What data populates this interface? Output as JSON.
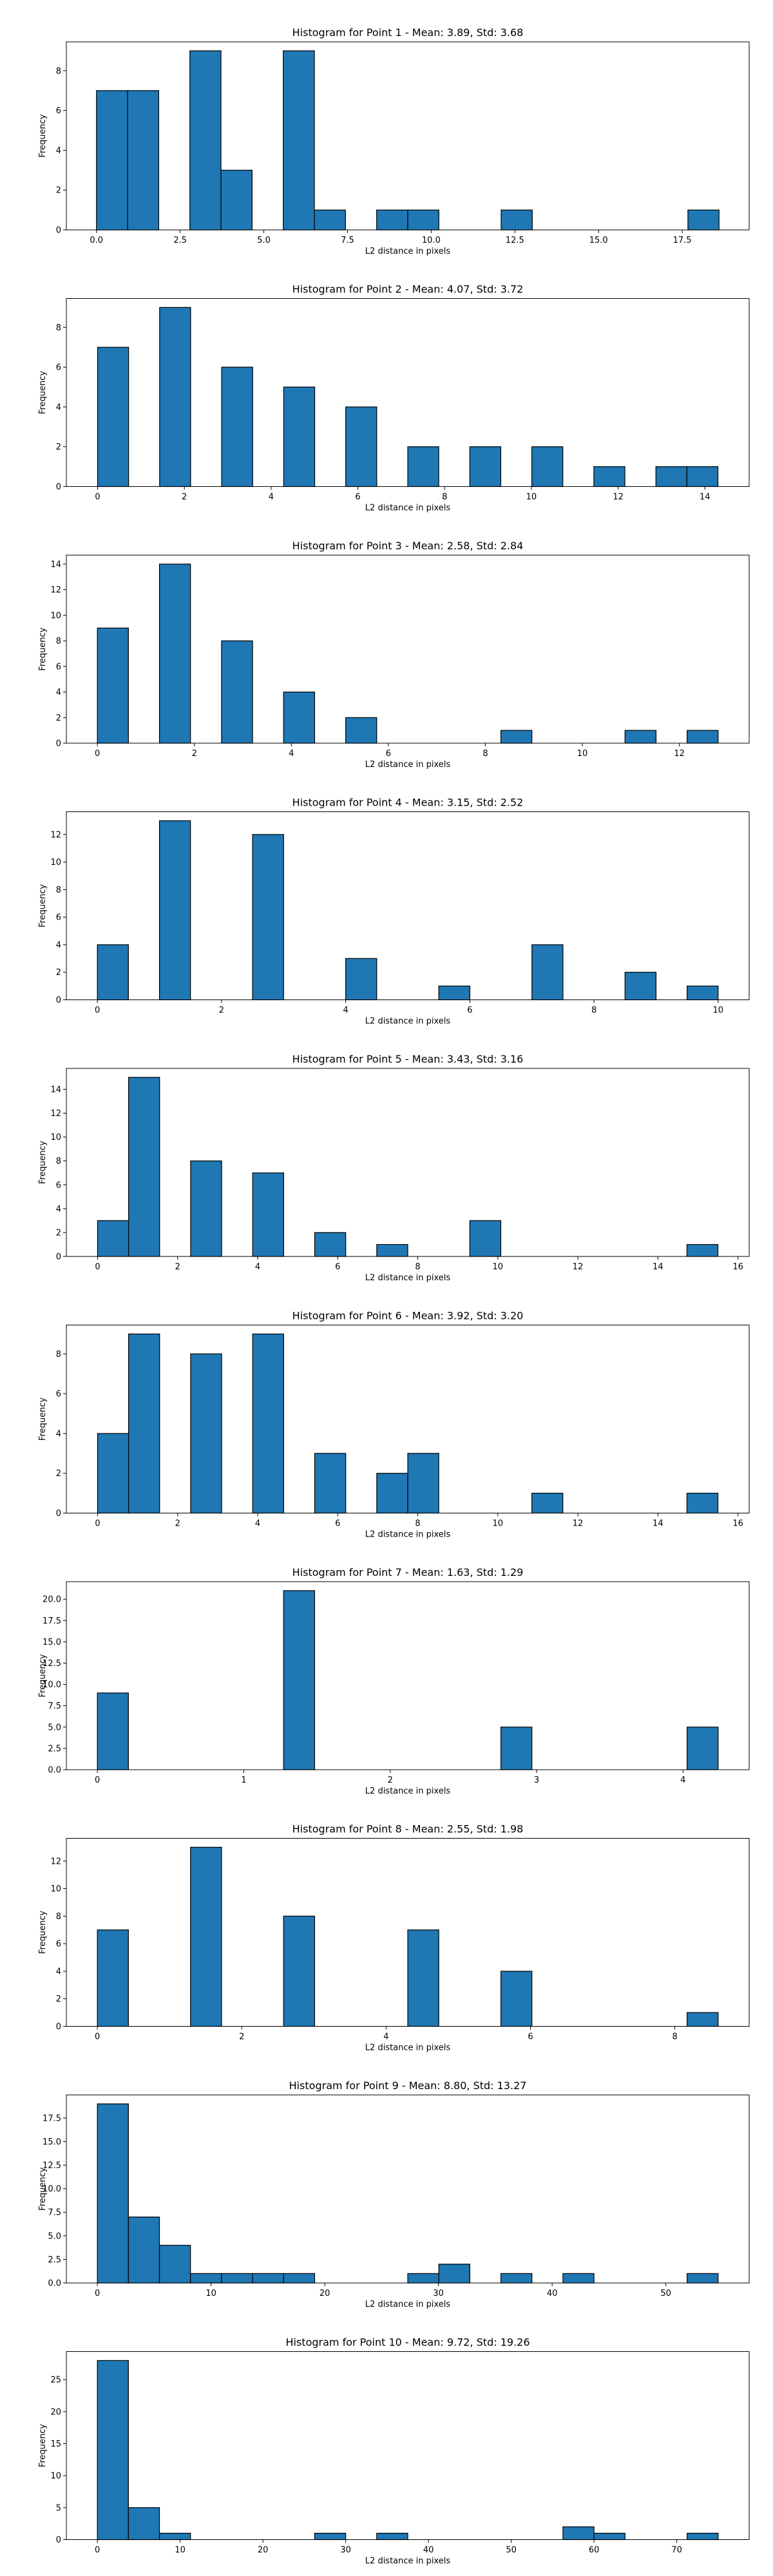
{
  "figure": {
    "bar_color": "#1f77b4",
    "edge_color": "#000000",
    "background": "#ffffff"
  },
  "chart_data": [
    {
      "type": "bar",
      "title": "Histogram for Point 1 - Mean: 3.89, Std: 3.68",
      "xlabel": "L2 distance in pixels",
      "ylabel": "Frequency",
      "bin_start": 0,
      "bin_width": 0.93,
      "counts": [
        7,
        7,
        0,
        9,
        3,
        0,
        9,
        1,
        0,
        1,
        1,
        0,
        0,
        1,
        0,
        0,
        0,
        0,
        0,
        1
      ],
      "xlim": [
        -0.9,
        19.5
      ],
      "ylim": [
        0,
        9.45
      ],
      "xticks": [
        0,
        2.5,
        5.0,
        7.5,
        10.0,
        12.5,
        15.0,
        17.5
      ],
      "xtick_labels": [
        "0.0",
        "2.5",
        "5.0",
        "7.5",
        "10.0",
        "12.5",
        "15.0",
        "17.5"
      ],
      "yticks": [
        0,
        2,
        4,
        6,
        8
      ],
      "ytick_labels": [
        "0",
        "2",
        "4",
        "6",
        "8"
      ]
    },
    {
      "type": "bar",
      "title": "Histogram for Point 2 - Mean: 4.07, Std: 3.72",
      "xlabel": "L2 distance in pixels",
      "ylabel": "Frequency",
      "bin_start": 0,
      "bin_width": 0.715,
      "counts": [
        7,
        0,
        9,
        0,
        6,
        0,
        5,
        0,
        4,
        0,
        2,
        0,
        2,
        0,
        2,
        0,
        1,
        0,
        1,
        1
      ],
      "xlim": [
        -0.72,
        15.02
      ],
      "ylim": [
        0,
        9.45
      ],
      "xticks": [
        0,
        2,
        4,
        6,
        8,
        10,
        12,
        14
      ],
      "xtick_labels": [
        "0",
        "2",
        "4",
        "6",
        "8",
        "10",
        "12",
        "14"
      ],
      "yticks": [
        0,
        2,
        4,
        6,
        8
      ],
      "ytick_labels": [
        "0",
        "2",
        "4",
        "6",
        "8"
      ]
    },
    {
      "type": "bar",
      "title": "Histogram for Point 3 - Mean: 2.58, Std: 2.84",
      "xlabel": "L2 distance in pixels",
      "ylabel": "Frequency",
      "bin_start": 0,
      "bin_width": 0.64,
      "counts": [
        9,
        0,
        14,
        0,
        8,
        0,
        4,
        0,
        2,
        0,
        0,
        0,
        0,
        1,
        0,
        0,
        0,
        1,
        0,
        1
      ],
      "xlim": [
        -0.64,
        13.44
      ],
      "ylim": [
        0,
        14.7
      ],
      "xticks": [
        0,
        2,
        4,
        6,
        8,
        10,
        12
      ],
      "xtick_labels": [
        "0",
        "2",
        "4",
        "6",
        "8",
        "10",
        "12"
      ],
      "yticks": [
        0,
        2,
        4,
        6,
        8,
        10,
        12,
        14
      ],
      "ytick_labels": [
        "0",
        "2",
        "4",
        "6",
        "8",
        "10",
        "12",
        "14"
      ]
    },
    {
      "type": "bar",
      "title": "Histogram for Point 4 - Mean: 3.15, Std: 2.52",
      "xlabel": "L2 distance in pixels",
      "ylabel": "Frequency",
      "bin_start": 0,
      "bin_width": 0.5,
      "counts": [
        4,
        0,
        13,
        0,
        0,
        12,
        0,
        0,
        3,
        0,
        0,
        1,
        0,
        0,
        4,
        0,
        0,
        2,
        0,
        1
      ],
      "xlim": [
        -0.5,
        10.5
      ],
      "ylim": [
        0,
        13.65
      ],
      "xticks": [
        0,
        2,
        4,
        6,
        8,
        10
      ],
      "xtick_labels": [
        "0",
        "2",
        "4",
        "6",
        "8",
        "10"
      ],
      "yticks": [
        0,
        2,
        4,
        6,
        8,
        10,
        12
      ],
      "ytick_labels": [
        "0",
        "2",
        "4",
        "6",
        "8",
        "10",
        "12"
      ]
    },
    {
      "type": "bar",
      "title": "Histogram for Point 5 - Mean: 3.43, Std: 3.16",
      "xlabel": "L2 distance in pixels",
      "ylabel": "Frequency",
      "bin_start": 0,
      "bin_width": 0.775,
      "counts": [
        3,
        15,
        0,
        8,
        0,
        7,
        0,
        2,
        0,
        1,
        0,
        0,
        3,
        0,
        0,
        0,
        0,
        0,
        0,
        1
      ],
      "xlim": [
        -0.78,
        16.28
      ],
      "ylim": [
        0,
        15.75
      ],
      "xticks": [
        0,
        2,
        4,
        6,
        8,
        10,
        12,
        14,
        16
      ],
      "xtick_labels": [
        "0",
        "2",
        "4",
        "6",
        "8",
        "10",
        "12",
        "14",
        "16"
      ],
      "yticks": [
        0,
        2,
        4,
        6,
        8,
        10,
        12,
        14
      ],
      "ytick_labels": [
        "0",
        "2",
        "4",
        "6",
        "8",
        "10",
        "12",
        "14"
      ]
    },
    {
      "type": "bar",
      "title": "Histogram for Point 6 - Mean: 3.92, Std: 3.20",
      "xlabel": "L2 distance in pixels",
      "ylabel": "Frequency",
      "bin_start": 0,
      "bin_width": 0.775,
      "counts": [
        4,
        9,
        0,
        8,
        0,
        9,
        0,
        3,
        0,
        2,
        3,
        0,
        0,
        0,
        1,
        0,
        0,
        0,
        0,
        1
      ],
      "xlim": [
        -0.78,
        16.28
      ],
      "ylim": [
        0,
        9.45
      ],
      "xticks": [
        0,
        2,
        4,
        6,
        8,
        10,
        12,
        14,
        16
      ],
      "xtick_labels": [
        "0",
        "2",
        "4",
        "6",
        "8",
        "10",
        "12",
        "14",
        "16"
      ],
      "yticks": [
        0,
        2,
        4,
        6,
        8
      ],
      "ytick_labels": [
        "0",
        "2",
        "4",
        "6",
        "8"
      ]
    },
    {
      "type": "bar",
      "title": "Histogram for Point 7 - Mean: 1.63, Std: 1.29",
      "xlabel": "L2 distance in pixels",
      "ylabel": "Frequency",
      "bin_start": 0,
      "bin_width": 0.212,
      "counts": [
        9,
        0,
        0,
        0,
        0,
        0,
        21,
        0,
        0,
        0,
        0,
        0,
        0,
        5,
        0,
        0,
        0,
        0,
        0,
        5
      ],
      "xlim": [
        -0.212,
        4.452
      ],
      "ylim": [
        0,
        22.05
      ],
      "xticks": [
        0,
        1,
        2,
        3,
        4
      ],
      "xtick_labels": [
        "0",
        "1",
        "2",
        "3",
        "4"
      ],
      "yticks": [
        0,
        2.5,
        5.0,
        7.5,
        10.0,
        12.5,
        15.0,
        17.5,
        20.0
      ],
      "ytick_labels": [
        "0.0",
        "2.5",
        "5.0",
        "7.5",
        "10.0",
        "12.5",
        "15.0",
        "17.5",
        "20.0"
      ]
    },
    {
      "type": "bar",
      "title": "Histogram for Point 8 - Mean: 2.55, Std: 1.98",
      "xlabel": "L2 distance in pixels",
      "ylabel": "Frequency",
      "bin_start": 0,
      "bin_width": 0.43,
      "counts": [
        7,
        0,
        0,
        13,
        0,
        0,
        8,
        0,
        0,
        0,
        7,
        0,
        0,
        4,
        0,
        0,
        0,
        0,
        0,
        1
      ],
      "xlim": [
        -0.43,
        9.03
      ],
      "ylim": [
        0,
        13.65
      ],
      "xticks": [
        0,
        2,
        4,
        6,
        8
      ],
      "xtick_labels": [
        "0",
        "2",
        "4",
        "6",
        "8"
      ],
      "yticks": [
        0,
        2,
        4,
        6,
        8,
        10,
        12
      ],
      "ytick_labels": [
        "0",
        "2",
        "4",
        "6",
        "8",
        "10",
        "12"
      ]
    },
    {
      "type": "bar",
      "title": "Histogram for Point 9 - Mean: 8.80, Std: 13.27",
      "xlabel": "L2 distance in pixels",
      "ylabel": "Frequency",
      "bin_start": 0,
      "bin_width": 2.73,
      "counts": [
        19,
        7,
        4,
        1,
        1,
        1,
        1,
        0,
        0,
        0,
        1,
        2,
        0,
        1,
        0,
        1,
        0,
        0,
        0,
        1
      ],
      "xlim": [
        -2.73,
        57.33
      ],
      "ylim": [
        0,
        19.95
      ],
      "xticks": [
        0,
        10,
        20,
        30,
        40,
        50
      ],
      "xtick_labels": [
        "0",
        "10",
        "20",
        "30",
        "40",
        "50"
      ],
      "yticks": [
        0,
        2.5,
        5.0,
        7.5,
        10.0,
        12.5,
        15.0,
        17.5
      ],
      "ytick_labels": [
        "0.0",
        "2.5",
        "5.0",
        "7.5",
        "10.0",
        "12.5",
        "15.0",
        "17.5"
      ]
    },
    {
      "type": "bar",
      "title": "Histogram for Point 10 - Mean: 9.72, Std: 19.26",
      "xlabel": "L2 distance in pixels",
      "ylabel": "Frequency",
      "bin_start": 0,
      "bin_width": 3.75,
      "counts": [
        28,
        5,
        1,
        0,
        0,
        0,
        0,
        1,
        0,
        1,
        0,
        0,
        0,
        0,
        0,
        2,
        1,
        0,
        0,
        1
      ],
      "xlim": [
        -3.75,
        78.75
      ],
      "ylim": [
        0,
        29.4
      ],
      "xticks": [
        0,
        10,
        20,
        30,
        40,
        50,
        60,
        70
      ],
      "xtick_labels": [
        "0",
        "10",
        "20",
        "30",
        "40",
        "50",
        "60",
        "70"
      ],
      "yticks": [
        0,
        5,
        10,
        15,
        20,
        25
      ],
      "ytick_labels": [
        "0",
        "5",
        "10",
        "15",
        "20",
        "25"
      ]
    }
  ]
}
